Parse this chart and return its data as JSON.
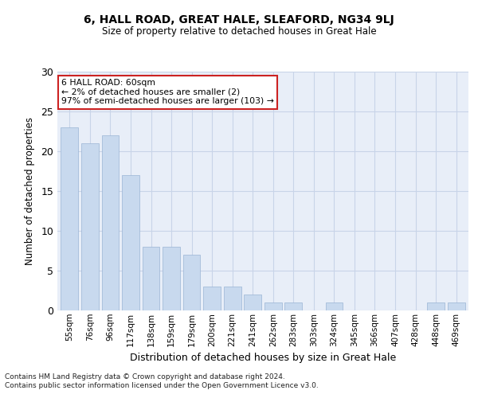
{
  "title1": "6, HALL ROAD, GREAT HALE, SLEAFORD, NG34 9LJ",
  "title2": "Size of property relative to detached houses in Great Hale",
  "xlabel": "Distribution of detached houses by size in Great Hale",
  "ylabel": "Number of detached properties",
  "categories": [
    "55sqm",
    "76sqm",
    "96sqm",
    "117sqm",
    "138sqm",
    "159sqm",
    "179sqm",
    "200sqm",
    "221sqm",
    "241sqm",
    "262sqm",
    "283sqm",
    "303sqm",
    "324sqm",
    "345sqm",
    "366sqm",
    "407sqm",
    "428sqm",
    "448sqm",
    "469sqm"
  ],
  "values": [
    23,
    21,
    22,
    17,
    8,
    8,
    7,
    3,
    3,
    2,
    1,
    1,
    0,
    1,
    0,
    0,
    0,
    0,
    1,
    1
  ],
  "bar_color": "#c8d9ee",
  "bar_edge_color": "#9ab4d4",
  "annotation_text": "6 HALL ROAD: 60sqm\n← 2% of detached houses are smaller (2)\n97% of semi-detached houses are larger (103) →",
  "annotation_box_edge": "#cc2222",
  "annotation_box_face": "#ffffff",
  "ylim": [
    0,
    30
  ],
  "yticks": [
    0,
    5,
    10,
    15,
    20,
    25,
    30
  ],
  "grid_color": "#c8d4e8",
  "background_color": "#e8eef8",
  "footer1": "Contains HM Land Registry data © Crown copyright and database right 2024.",
  "footer2": "Contains public sector information licensed under the Open Government Licence v3.0."
}
